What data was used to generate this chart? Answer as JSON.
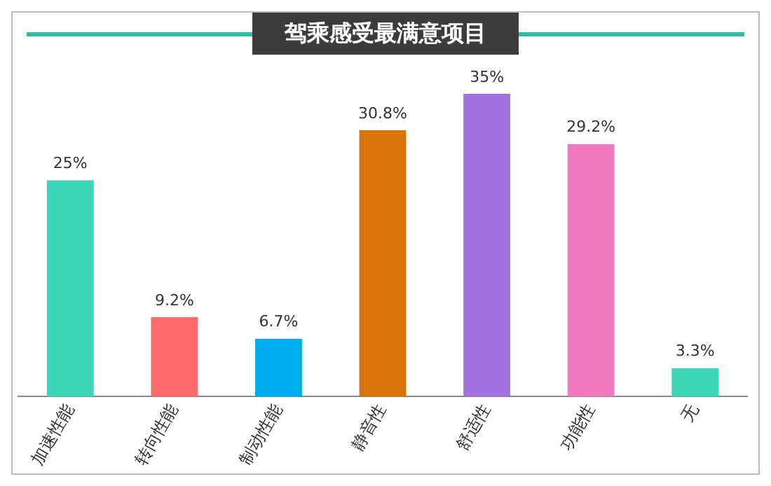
{
  "chart_data": {
    "type": "bar",
    "title": "驾乘感受最满意项目",
    "categories": [
      "加速性能",
      "转向性能",
      "制动性能",
      "静音性",
      "舒适性",
      "功能性",
      "无"
    ],
    "values": [
      25,
      9.2,
      6.7,
      30.8,
      35,
      29.2,
      3.3
    ],
    "colors": [
      "#3cd6b9",
      "#ff6b6b",
      "#00aeef",
      "#d9730a",
      "#a173e0",
      "#ee79bd",
      "#3cd6b9"
    ],
    "value_labels": [
      "25%",
      "9.2%",
      "6.7%",
      "30.8%",
      "35%",
      "29.2%",
      "3.3%"
    ]
  }
}
